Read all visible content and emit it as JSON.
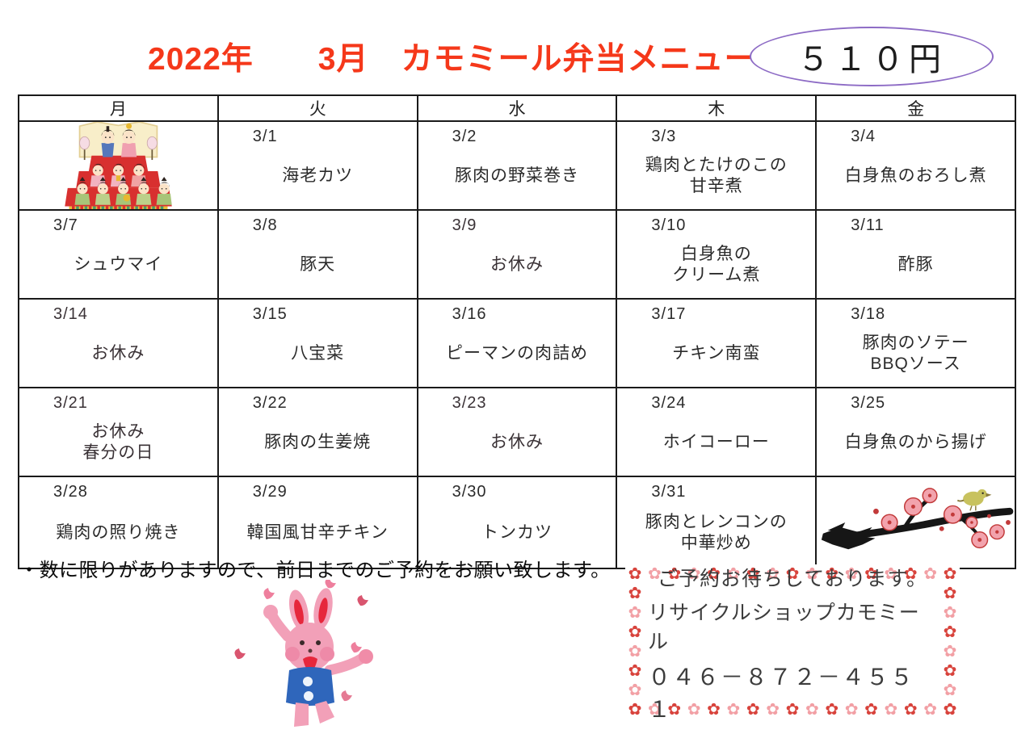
{
  "header": {
    "title": "2022年　　3月　カモミール弁当メニュー",
    "price": "５１０円"
  },
  "calendar": {
    "day_headers": [
      "月",
      "火",
      "水",
      "木",
      "金"
    ],
    "weeks": [
      [
        {
          "image": "hina-dolls"
        },
        {
          "date": "3/1",
          "menu": [
            "海老カツ"
          ]
        },
        {
          "date": "3/2",
          "menu": [
            "豚肉の野菜巻き"
          ]
        },
        {
          "date": "3/3",
          "menu": [
            "鶏肉とたけのこの",
            "甘辛煮"
          ]
        },
        {
          "date": "3/4",
          "menu": [
            "白身魚のおろし煮"
          ]
        }
      ],
      [
        {
          "date": "3/7",
          "menu": [
            "シュウマイ"
          ]
        },
        {
          "date": "3/8",
          "menu": [
            "豚天"
          ]
        },
        {
          "date": "3/9",
          "menu": [
            "お休み"
          ],
          "closed": true
        },
        {
          "date": "3/10",
          "menu": [
            "白身魚の",
            "クリーム煮"
          ]
        },
        {
          "date": "3/11",
          "menu": [
            "酢豚"
          ]
        }
      ],
      [
        {
          "date": "3/14",
          "menu": [
            "お休み"
          ],
          "closed": true
        },
        {
          "date": "3/15",
          "menu": [
            "八宝菜"
          ]
        },
        {
          "date": "3/16",
          "menu": [
            "ピーマンの肉詰め"
          ]
        },
        {
          "date": "3/17",
          "menu": [
            "チキン南蛮"
          ]
        },
        {
          "date": "3/18",
          "menu": [
            "豚肉のソテー",
            "BBQソース"
          ]
        }
      ],
      [
        {
          "date": "3/21",
          "menu": [
            "お休み",
            "春分の日"
          ],
          "closed": true
        },
        {
          "date": "3/22",
          "menu": [
            "豚肉の生姜焼"
          ]
        },
        {
          "date": "3/23",
          "menu": [
            "お休み"
          ],
          "closed": true
        },
        {
          "date": "3/24",
          "menu": [
            "ホイコーロー"
          ]
        },
        {
          "date": "3/25",
          "menu": [
            "白身魚のから揚げ"
          ]
        }
      ],
      [
        {
          "date": "3/28",
          "menu": [
            "鶏肉の照り焼き"
          ]
        },
        {
          "date": "3/29",
          "menu": [
            "韓国風甘辛チキン"
          ]
        },
        {
          "date": "3/30",
          "menu": [
            "トンカツ"
          ]
        },
        {
          "date": "3/31",
          "menu": [
            "豚肉とレンコンの",
            "中華炒め"
          ]
        },
        {
          "image": "plum-branch"
        }
      ]
    ]
  },
  "note": "・数に限りがありますので、前日までのご予約をお願い致します。",
  "contact_box": {
    "lines": [
      "ご予約お待ちしております。",
      "リサイクルショップカモミール",
      "０４６－８７２－４５５１"
    ],
    "flower_glyph": "✿",
    "flowers_horizontal": 17,
    "flowers_vertical": 7
  },
  "colors": {
    "title_red": "#f5381a",
    "oval_purple": "#8d6bc5",
    "closed_cell_pink": "#dca7bf",
    "flower_red": "#d8433c",
    "flower_pink": "#f2a0a5"
  }
}
